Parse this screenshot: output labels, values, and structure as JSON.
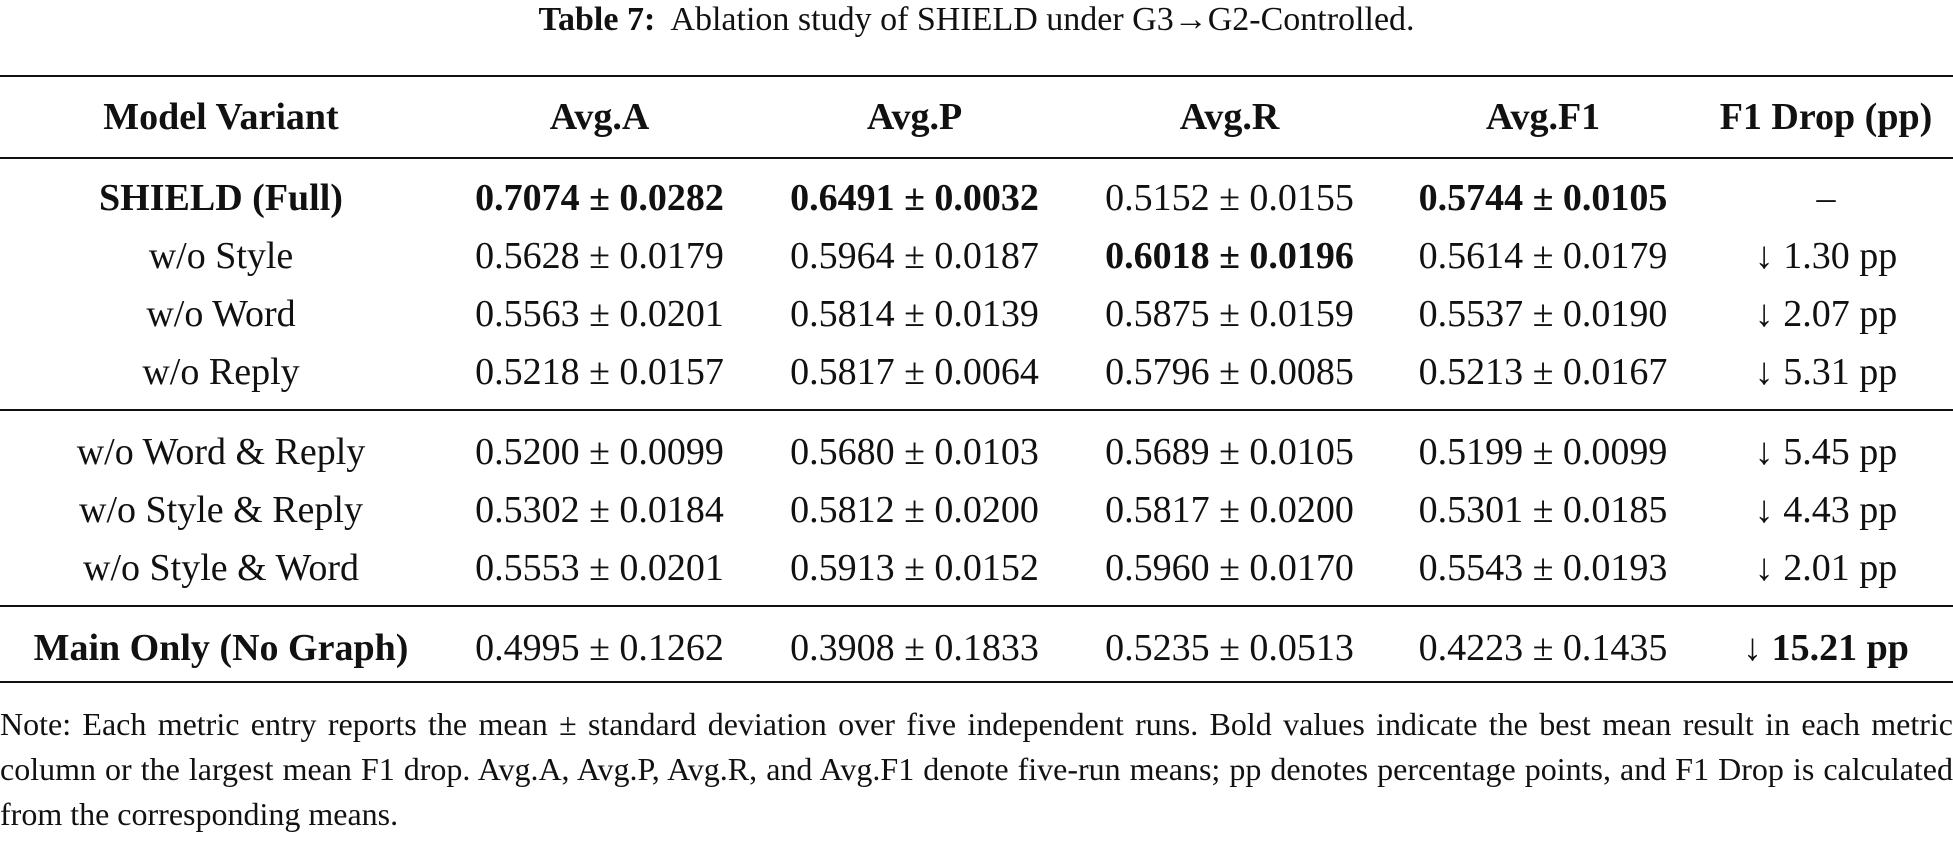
{
  "caption": {
    "label": "Table 7:",
    "text": "Ablation study of SHIELD under G3→G2-Controlled."
  },
  "table": {
    "headers": [
      "Model Variant",
      "Avg.A",
      "Avg.P",
      "Avg.R",
      "Avg.F1",
      "F1 Drop (pp)"
    ],
    "rows": [
      [
        "SHIELD (Full)",
        "0.7074 ± 0.0282",
        "0.6491 ± 0.0032",
        "0.5152 ± 0.0155",
        "0.5744 ± 0.0105",
        "–"
      ],
      [
        "w/o Style",
        "0.5628 ± 0.0179",
        "0.5964 ± 0.0187",
        "0.6018 ± 0.0196",
        "0.5614 ± 0.0179",
        "↓ 1.30 pp"
      ],
      [
        "w/o Word",
        "0.5563 ± 0.0201",
        "0.5814 ± 0.0139",
        "0.5875 ± 0.0159",
        "0.5537 ± 0.0190",
        "↓ 2.07 pp"
      ],
      [
        "w/o Reply",
        "0.5218 ± 0.0157",
        "0.5817 ± 0.0064",
        "0.5796 ± 0.0085",
        "0.5213 ± 0.0167",
        "↓ 5.31 pp"
      ],
      [
        "w/o Word & Reply",
        "0.5200 ± 0.0099",
        "0.5680 ± 0.0103",
        "0.5689 ± 0.0105",
        "0.5199 ± 0.0099",
        "↓ 5.45 pp"
      ],
      [
        "w/o Style & Reply",
        "0.5302 ± 0.0184",
        "0.5812 ± 0.0200",
        "0.5817 ± 0.0200",
        "0.5301 ± 0.0185",
        "↓ 4.43 pp"
      ],
      [
        "w/o Style & Word",
        "0.5553 ± 0.0201",
        "0.5913 ± 0.0152",
        "0.5960 ± 0.0170",
        "0.5543 ± 0.0193",
        "↓ 2.01 pp"
      ],
      [
        "Main Only (No Graph)",
        "0.4995 ± 0.1262",
        "0.3908 ± 0.1833",
        "0.5235 ± 0.0513",
        "0.4223 ± 0.1435",
        "↓ 15.21 pp"
      ]
    ]
  },
  "note": "Note: Each metric entry reports the mean ± standard deviation over five independent runs. Bold values indicate the best mean result in each metric column or the largest mean F1 drop. Avg.A, Avg.P, Avg.R, and Avg.F1 denote five-run means; pp denotes percentage points, and F1 Drop is calculated from the corresponding means."
}
